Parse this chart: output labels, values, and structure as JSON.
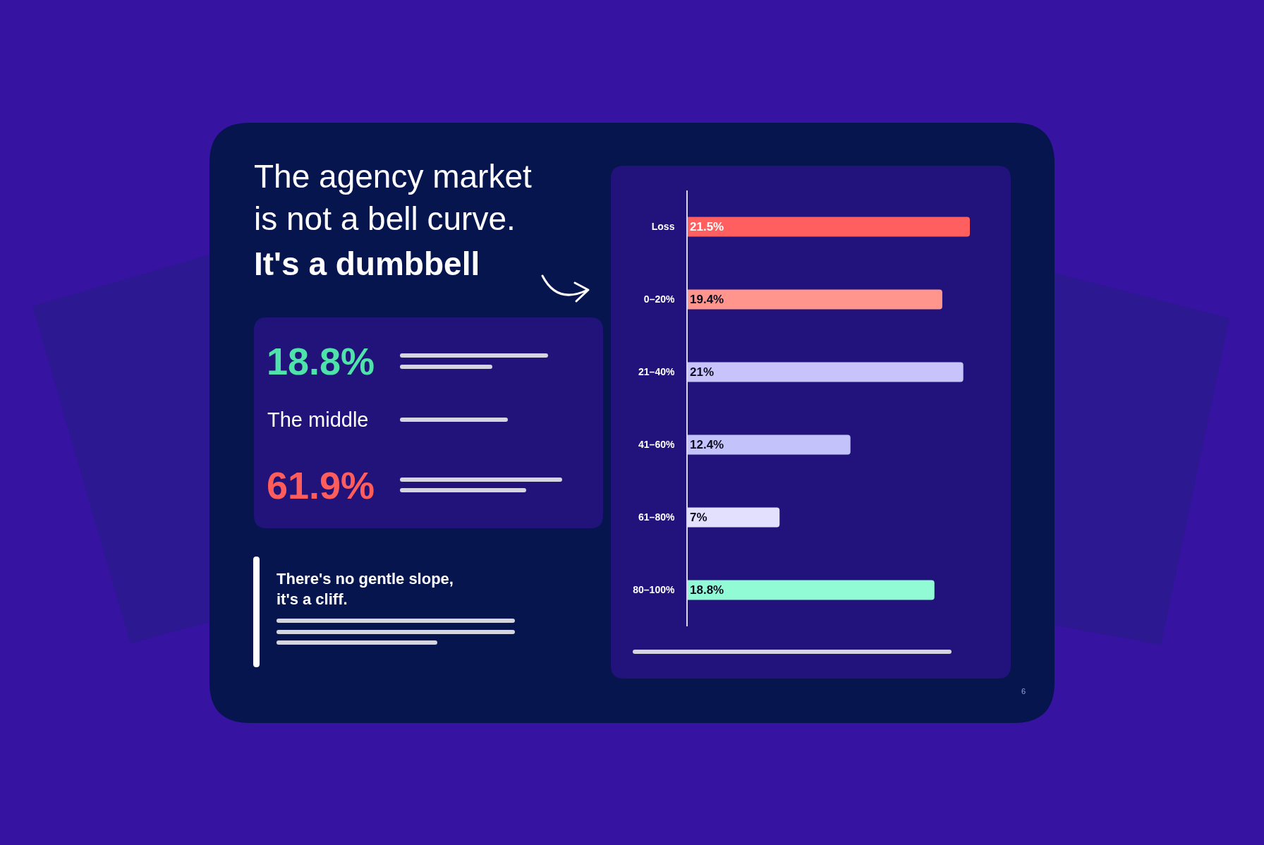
{
  "chart_data": {
    "type": "bar",
    "orientation": "horizontal",
    "title": "The agency market\nis not a bell curve.",
    "subtitle": "It's a dumbbell",
    "categories": [
      "Loss",
      "0–20%",
      "21–40%",
      "41–60%",
      "61–80%",
      "80–100%"
    ],
    "values": [
      21.5,
      19.4,
      21,
      12.4,
      7,
      18.8
    ],
    "colors": [
      "#ff5f5f",
      "#ff958c",
      "#c6c4fb",
      "#c4c2fa",
      "#e2e0fd",
      "#90fbd4"
    ],
    "value_labels": [
      "21.5%",
      "19.4%",
      "21%",
      "12.4%",
      "7%",
      "18.8%"
    ],
    "tick_labels": "y",
    "annotations": [
      "18.8%",
      "The middle",
      "61.9%",
      "There's no gentle slope,\nit's a cliff.",
      "6"
    ]
  }
}
